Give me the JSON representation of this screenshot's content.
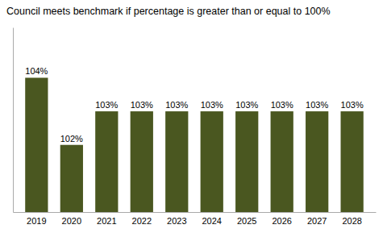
{
  "chart_data": {
    "type": "bar",
    "title": "Council meets benchmark if percentage is greater than or equal to 100%",
    "categories": [
      "2019",
      "2020",
      "2021",
      "2022",
      "2023",
      "2024",
      "2025",
      "2026",
      "2027",
      "2028"
    ],
    "values": [
      104,
      102,
      103,
      103,
      103,
      103,
      103,
      103,
      103,
      103
    ],
    "value_labels": [
      "104%",
      "102%",
      "103%",
      "103%",
      "103%",
      "103%",
      "103%",
      "103%",
      "103%",
      "103%"
    ],
    "data_labels": true,
    "color": "#4a5720",
    "ylim": [
      100,
      105.5
    ],
    "tick_labels": "x",
    "grid": false
  }
}
